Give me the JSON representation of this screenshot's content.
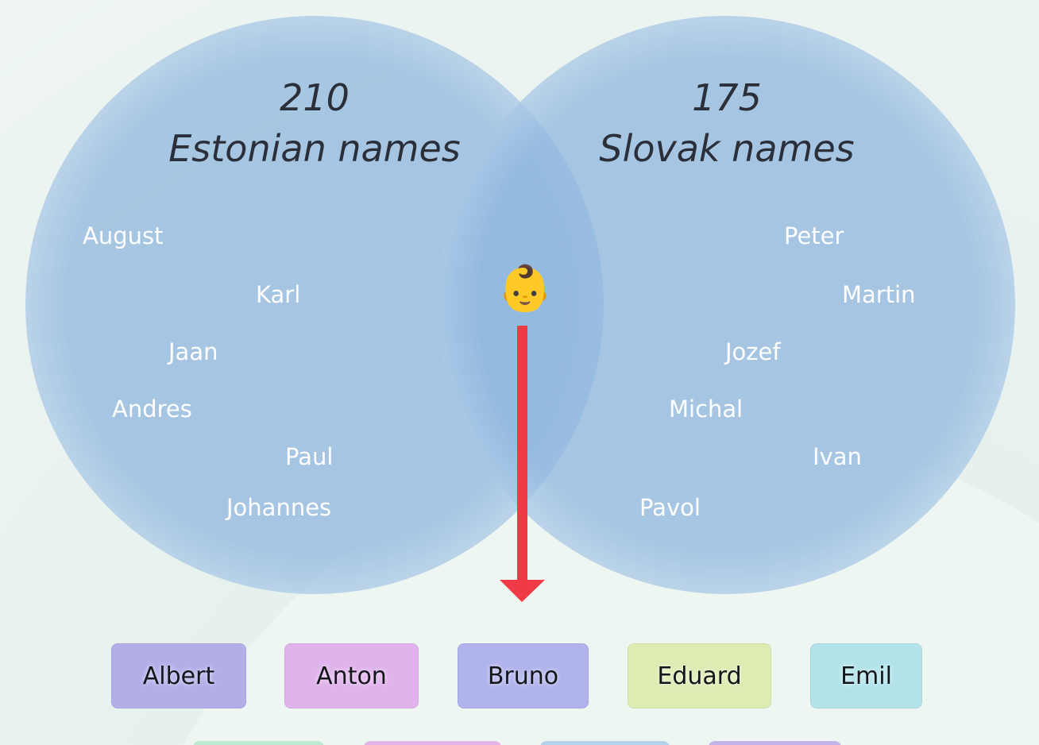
{
  "left": {
    "count": 210,
    "label": "Estonian names",
    "names": [
      "August",
      "Karl",
      "Jaan",
      "Andres",
      "Paul",
      "Johannes"
    ]
  },
  "right": {
    "count": 175,
    "label": "Slovak names",
    "names": [
      "Peter",
      "Martin",
      "Jozef",
      "Michal",
      "Ivan",
      "Pavol"
    ]
  },
  "center": "👶",
  "options": [
    "Albert",
    "Anton",
    "Bruno",
    "Eduard",
    "Emil"
  ]
}
